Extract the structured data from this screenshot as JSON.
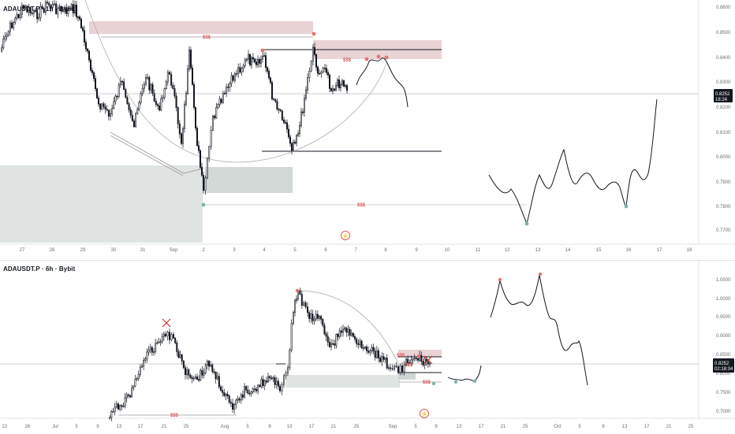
{
  "panes": {
    "top": {
      "title": "ADAUSDT.P · 1h · Bybit",
      "price_axis": [
        "0.8600",
        "0.8500",
        "0.8400",
        "0.8300",
        "0.8200",
        "0.8100",
        "0.8000",
        "0.7900",
        "0.7800",
        "0.7700"
      ],
      "current_price": "0.8252",
      "countdown": "18:24",
      "time_axis": [
        "27",
        "28",
        "29",
        "30",
        "31",
        "Sep",
        "2",
        "3",
        "4",
        "5",
        "6",
        "7",
        "8",
        "9",
        "10",
        "11",
        "12",
        "13",
        "14",
        "15",
        "16",
        "17",
        "18"
      ],
      "liquidity_labels": [
        "$$$",
        "$$$",
        "$$$"
      ]
    },
    "bottom": {
      "title": "ADAUSDT.P · 6h · Bybit",
      "price_axis": [
        "1.0500",
        "1.0000",
        "0.9500",
        "0.9000",
        "0.8500",
        "0.8000",
        "0.7500",
        "0.7000"
      ],
      "current_price": "0.8252",
      "countdown": "02:18:34",
      "time_axis": [
        "22",
        "26",
        "Jul",
        "5",
        "9",
        "13",
        "17",
        "21",
        "25",
        "Aug",
        "5",
        "9",
        "13",
        "17",
        "21",
        "25",
        "Sep",
        "5",
        "9",
        "13",
        "17",
        "21",
        "25",
        "Oct",
        "5",
        "9",
        "13",
        "17",
        "21",
        "25"
      ],
      "liquidity_labels": [
        "$$$",
        "$$$",
        "$$$",
        "$$$"
      ]
    }
  },
  "colors": {
    "candle": "#131722",
    "projection": "#131722",
    "supply_zone": "#e8d3d5",
    "demand_zone": "#dfe4e2",
    "liquidity": "#d32f2f",
    "price_tag_bg": "#131722",
    "pivot_low": "#7fb3a8",
    "pivot_high": "#e57373"
  },
  "chart_data": [
    {
      "type": "line",
      "title": "ADAUSDT.P · 1h · Bybit",
      "x": [
        "27",
        "28",
        "29",
        "30",
        "31",
        "Sep",
        "2",
        "3",
        "4",
        "5",
        "6",
        "7",
        "8",
        "9",
        "10",
        "11",
        "12",
        "13",
        "14",
        "15",
        "16",
        "17",
        "18"
      ],
      "ylim": [
        0.765,
        0.865
      ],
      "last_price": 0.8252,
      "levels": [
        0.847,
        0.843,
        0.802,
        0.778
      ],
      "projection_pivots": [
        0.773,
        0.778
      ]
    },
    {
      "type": "line",
      "title": "ADAUSDT.P · 6h · Bybit",
      "x": [
        "22",
        "26",
        "Jul",
        "5",
        "9",
        "13",
        "17",
        "21",
        "25",
        "Aug",
        "5",
        "9",
        "13",
        "17",
        "21",
        "25",
        "Sep",
        "5",
        "9",
        "13",
        "17",
        "21",
        "25",
        "Oct",
        "5",
        "9",
        "13",
        "17",
        "21",
        "25"
      ],
      "ylim": [
        0.69,
        1.07
      ],
      "last_price": 0.8252,
      "projection_pivots": [
        1.045,
        1.065
      ]
    }
  ]
}
